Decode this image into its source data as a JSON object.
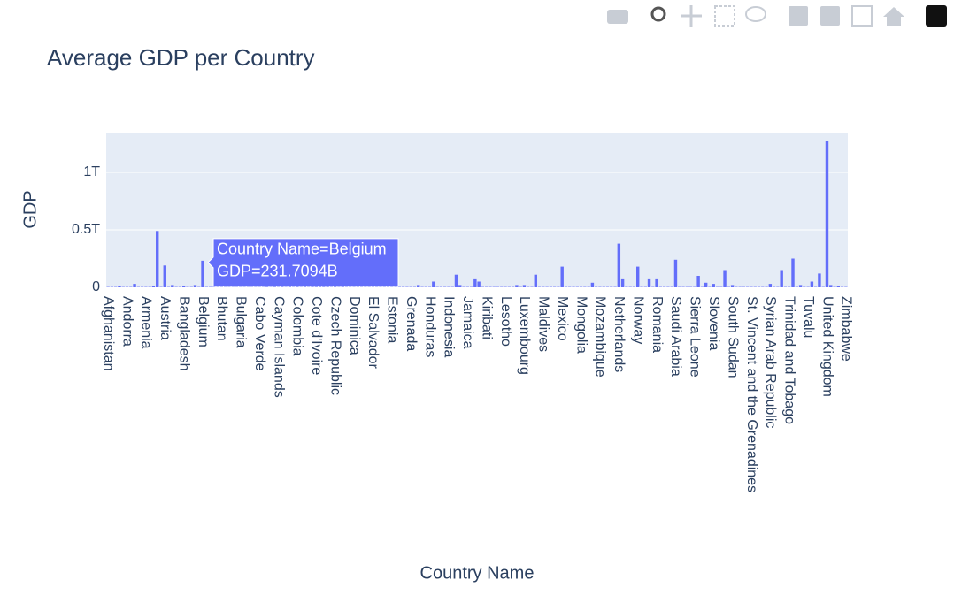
{
  "chart_data": {
    "type": "bar",
    "title": "Average GDP per Country",
    "x_label": "Country Name",
    "y_label": "GDP",
    "color": "#636efa",
    "grid": true,
    "ylim": [
      0,
      1346000000000.0
    ],
    "yticks": [
      0,
      {
        "value": 500000000000.0,
        "label": "0.5T"
      },
      {
        "value": 1000000000000.0,
        "label": "1T"
      }
    ],
    "tooltip": {
      "category_index": 25,
      "lines": [
        "Country Name=Belgium",
        "GDP=231.7094B"
      ]
    },
    "categories": [
      "Afghanistan",
      null,
      null,
      null,
      null,
      "Andorra",
      null,
      null,
      null,
      null,
      "Armenia",
      null,
      null,
      null,
      null,
      "Austria",
      null,
      null,
      null,
      null,
      "Bangladesh",
      null,
      null,
      null,
      null,
      "Belgium",
      null,
      null,
      null,
      null,
      "Bhutan",
      null,
      null,
      null,
      null,
      "Bulgaria",
      null,
      null,
      null,
      null,
      "Cabo Verde",
      null,
      null,
      null,
      null,
      "Cayman Islands",
      null,
      null,
      null,
      null,
      "Colombia",
      null,
      null,
      null,
      null,
      "Cote d'Ivoire",
      null,
      null,
      null,
      null,
      "Czech Republic",
      null,
      null,
      null,
      null,
      "Dominica",
      null,
      null,
      null,
      null,
      "El Salvador",
      null,
      null,
      null,
      null,
      "Estonia",
      null,
      null,
      null,
      null,
      "Grenada",
      null,
      null,
      null,
      null,
      "Honduras",
      null,
      null,
      null,
      null,
      "Indonesia",
      null,
      null,
      null,
      null,
      "Jamaica",
      null,
      null,
      null,
      null,
      "Kiribati",
      null,
      null,
      null,
      null,
      "Lesotho",
      null,
      null,
      null,
      null,
      "Luxembourg",
      null,
      null,
      null,
      null,
      "Maldives",
      null,
      null,
      null,
      null,
      "Mexico",
      null,
      null,
      null,
      null,
      "Mongolia",
      null,
      null,
      null,
      null,
      "Mozambique",
      null,
      null,
      null,
      null,
      "Netherlands",
      null,
      null,
      null,
      null,
      "Norway",
      null,
      null,
      null,
      null,
      "Romania",
      null,
      null,
      null,
      null,
      "Saudi Arabia",
      null,
      null,
      null,
      null,
      "Sierra Leone",
      null,
      null,
      null,
      null,
      "Slovenia",
      null,
      null,
      null,
      null,
      "South Sudan",
      null,
      null,
      null,
      null,
      "St. Vincent and the Grenadines",
      null,
      null,
      null,
      null,
      "Syrian Arab Republic",
      null,
      null,
      null,
      null,
      "Trinidad and Tobago",
      null,
      null,
      null,
      null,
      "Tuvalu",
      null,
      null,
      null,
      null,
      "United Kingdom",
      null,
      null,
      null,
      null,
      "Zimbabwe"
    ],
    "values": [
      3000000000.0,
      3000000000.0,
      3000000000.0,
      10000000000.0,
      3000000000.0,
      3000000000.0,
      3000000000.0,
      30000000000.0,
      3000000000.0,
      3000000000.0,
      3000000000.0,
      3000000000.0,
      10000000000.0,
      490000000000.0,
      3000000000.0,
      190000000000.0,
      3000000000.0,
      20000000000.0,
      3000000000.0,
      3000000000.0,
      10000000000.0,
      3000000000.0,
      3000000000.0,
      20000000000.0,
      3000000000.0,
      231709400000.0,
      3000000000.0,
      3000000000.0,
      3000000000.0,
      3000000000.0,
      3000000000.0,
      3000000000.0,
      3000000000.0,
      3000000000.0,
      3000000000.0,
      3000000000.0,
      3000000000.0,
      3000000000.0,
      3000000000.0,
      3000000000.0,
      3000000000.0,
      3000000000.0,
      8000000000.0,
      3000000000.0,
      8000000000.0,
      3000000000.0,
      8000000000.0,
      3000000000.0,
      8000000000.0,
      3000000000.0,
      8000000000.0,
      3000000000.0,
      8000000000.0,
      3000000000.0,
      8000000000.0,
      8000000000.0,
      8000000000.0,
      8000000000.0,
      8000000000.0,
      3000000000.0,
      8000000000.0,
      3000000000.0,
      8000000000.0,
      3000000000.0,
      3000000000.0,
      3000000000.0,
      3000000000.0,
      3000000000.0,
      3000000000.0,
      3000000000.0,
      3000000000.0,
      3000000000.0,
      3000000000.0,
      3000000000.0,
      3000000000.0,
      3000000000.0,
      3000000000.0,
      3000000000.0,
      3000000000.0,
      3000000000.0,
      3000000000.0,
      3000000000.0,
      20000000000.0,
      3000000000.0,
      3000000000.0,
      3000000000.0,
      50000000000.0,
      3000000000.0,
      3000000000.0,
      3000000000.0,
      3000000000.0,
      3000000000.0,
      110000000000.0,
      20000000000.0,
      3000000000.0,
      3000000000.0,
      3000000000.0,
      70000000000.0,
      50000000000.0,
      3000000000.0,
      3000000000.0,
      3000000000.0,
      3000000000.0,
      3000000000.0,
      3000000000.0,
      3000000000.0,
      3000000000.0,
      3000000000.0,
      20000000000.0,
      3000000000.0,
      20000000000.0,
      3000000000.0,
      3000000000.0,
      110000000000.0,
      3000000000.0,
      3000000000.0,
      3000000000.0,
      3000000000.0,
      3000000000.0,
      3000000000.0,
      180000000000.0,
      3000000000.0,
      3000000000.0,
      3000000000.0,
      3000000000.0,
      3000000000.0,
      3000000000.0,
      3000000000.0,
      40000000000.0,
      3000000000.0,
      3000000000.0,
      3000000000.0,
      3000000000.0,
      3000000000.0,
      3000000000.0,
      380000000000.0,
      70000000000.0,
      3000000000.0,
      3000000000.0,
      3000000000.0,
      180000000000.0,
      3000000000.0,
      3000000000.0,
      70000000000.0,
      3000000000.0,
      70000000000.0,
      3000000000.0,
      3000000000.0,
      3000000000.0,
      3000000000.0,
      240000000000.0,
      3000000000.0,
      3000000000.0,
      3000000000.0,
      3000000000.0,
      3000000000.0,
      100000000000.0,
      3000000000.0,
      40000000000.0,
      3000000000.0,
      30000000000.0,
      3000000000.0,
      3000000000.0,
      150000000000.0,
      3000000000.0,
      20000000000.0,
      3000000000.0,
      3000000000.0,
      3000000000.0,
      3000000000.0,
      3000000000.0,
      3000000000.0,
      3000000000.0,
      3000000000.0,
      3000000000.0,
      30000000000.0,
      3000000000.0,
      3000000000.0,
      150000000000.0,
      3000000000.0,
      3000000000.0,
      250000000000.0,
      3000000000.0,
      20000000000.0,
      3000000000.0,
      3000000000.0,
      50000000000.0,
      3000000000.0,
      120000000000.0,
      3000000000.0,
      1270000000000.0,
      20000000000.0,
      3000000000.0,
      10000000000.0,
      3000000000.0,
      3000000000.0
    ]
  }
}
